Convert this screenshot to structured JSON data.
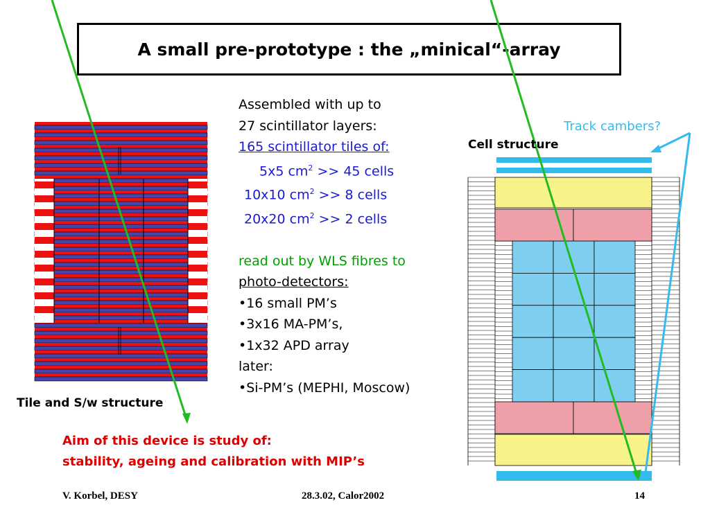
{
  "title": "A small pre-prototype : the „minical“-array",
  "text": {
    "line1": "Assembled with up to",
    "line2": "27 scintillator layers:",
    "line3": "165 scintillator tiles of: ",
    "line4_pre": "5x5 cm",
    "line4_post": " >> 45 cells",
    "line5_pre": "10x10 cm",
    "line5_post": " >>   8 cells",
    "line6_pre": "20x20 cm",
    "line6_post": " >>  2 cells",
    "sup": "2",
    "line7": "read out by WLS fibres to",
    "line8": "photo-detectors:",
    "line9": "•16 small PM’s",
    "line10": "•3x16 MA-PM’s,",
    "line11": "•1x32 APD array",
    "line12": "later:",
    "line13": "•Si-PM’s (MEPHI, Moscow)"
  },
  "captions": {
    "tile": "Tile and S/w structure",
    "cell": "Cell structure",
    "track": "Track cambers?"
  },
  "aim": {
    "line1": "Aim of this device is study of:",
    "line2": "stability, ageing and calibration with MIP’s"
  },
  "footer": {
    "author": "V. Korbel, DESY",
    "date": "28.3.02, Calor2002",
    "page": "14"
  },
  "colors": {
    "red_layer": "#ee1111",
    "blue_layer": "#4444aa",
    "cell_blue": "#7fd0f0",
    "cell_yellow": "#f8f48a",
    "cell_pink": "#f0a0a8",
    "track_green": "#22bb22",
    "track_cyan": "#33bbee"
  }
}
